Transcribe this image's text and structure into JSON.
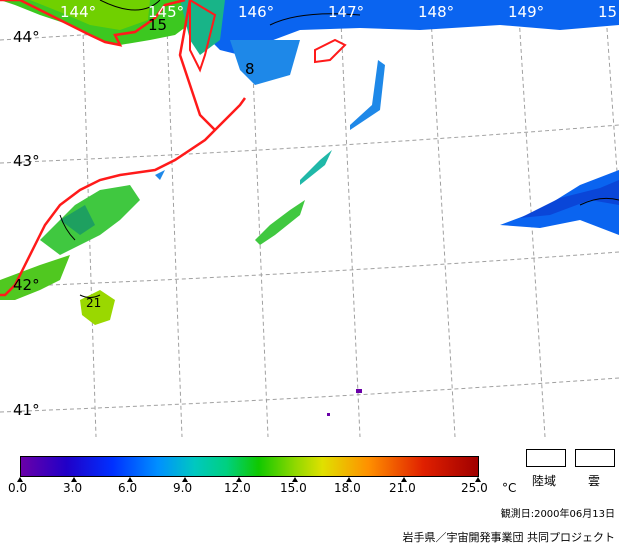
{
  "map": {
    "longitude_labels": [
      "144°",
      "145°",
      "146°",
      "147°",
      "148°",
      "149°",
      "15"
    ],
    "latitude_labels": [
      "44°",
      "43°",
      "42°",
      "41°"
    ],
    "contour_labels": [
      "15",
      "8",
      "21"
    ]
  },
  "colorbar": {
    "ticks": [
      "0.0",
      "3.0",
      "6.0",
      "9.0",
      "12.0",
      "15.0",
      "18.0",
      "21.0",
      "25.0"
    ],
    "unit": "°C"
  },
  "legend": {
    "land_label": "陸域",
    "cloud_label": "雲"
  },
  "observation_date": "観測日:2000年06月13日",
  "credit": "岩手県／宇宙開発事業団 共同プロジェクト",
  "colors": {
    "coastline": "#ff1a1a",
    "grid": "#a0a0a0"
  }
}
